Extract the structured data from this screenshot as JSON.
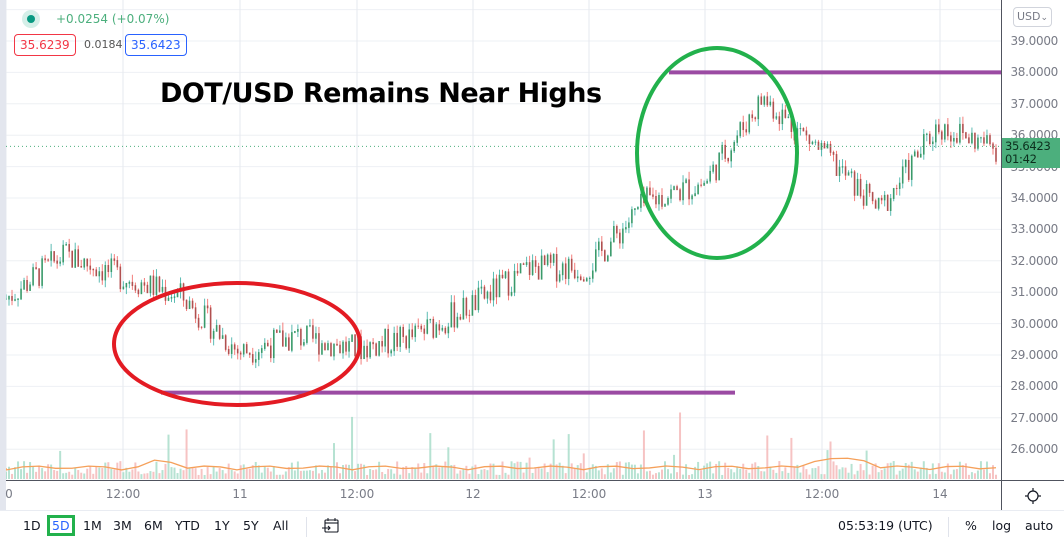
{
  "legend": {
    "change": "+0.0254 (+0.07%)",
    "bid": "35.6239",
    "spread": "0.0184",
    "ask": "35.6423"
  },
  "annotation": {
    "headline": "DOT/USD Remains Near Highs",
    "colors": {
      "support_resistance": "#9b4ba3",
      "red_circle": "#e31b23",
      "green_circle": "#22b14c"
    },
    "resistance_level": 38.0,
    "support_level": 27.8
  },
  "price_axis": {
    "currency": "USD",
    "currency_chevron": "⌄",
    "labels": [
      "39.0000",
      "38.0000",
      "37.0000",
      "36.0000",
      "35.0000",
      "34.0000",
      "33.0000",
      "32.0000",
      "31.0000",
      "30.0000",
      "29.0000",
      "28.0000",
      "27.0000",
      "26.0000"
    ],
    "current_price": "35.6423",
    "countdown": "01:42"
  },
  "time_axis": {
    "labels": [
      "0",
      "12:00",
      "11",
      "12:00",
      "12",
      "12:00",
      "13",
      "12:00",
      "14"
    ]
  },
  "bottom_bar": {
    "ranges": [
      "1D",
      "5D",
      "1M",
      "3M",
      "6M",
      "YTD",
      "1Y",
      "5Y",
      "All"
    ],
    "active_range": "5D",
    "clock": "05:53:19 (UTC)",
    "percent": "%",
    "log": "log",
    "auto": "auto"
  },
  "colors": {
    "up": "#26a69a",
    "down": "#ef5350",
    "volume_ma": "#f5a05a",
    "price_line": "#4caf7d"
  },
  "chart_data": {
    "type": "line",
    "title": "DOT/USD Remains Near Highs",
    "xlabel": "",
    "ylabel": "USD",
    "x": [
      "10 00:00",
      "10 06:00",
      "10 12:00",
      "10 18:00",
      "11 00:00",
      "11 06:00",
      "11 12:00",
      "11 18:00",
      "12 00:00",
      "12 06:00",
      "12 12:00",
      "12 18:00",
      "13 00:00",
      "13 06:00",
      "13 12:00",
      "13 18:00",
      "14 00:00",
      "14 06:00"
    ],
    "series": [
      {
        "name": "DOT/USD",
        "values": [
          30.8,
          32.2,
          31.5,
          30.9,
          29.1,
          29.6,
          29.2,
          29.6,
          30.6,
          31.8,
          31.8,
          33.9,
          34.5,
          37.2,
          35.5,
          33.6,
          36.3,
          35.6
        ]
      }
    ],
    "ylim": [
      25.4,
      40
    ],
    "grid": true
  }
}
